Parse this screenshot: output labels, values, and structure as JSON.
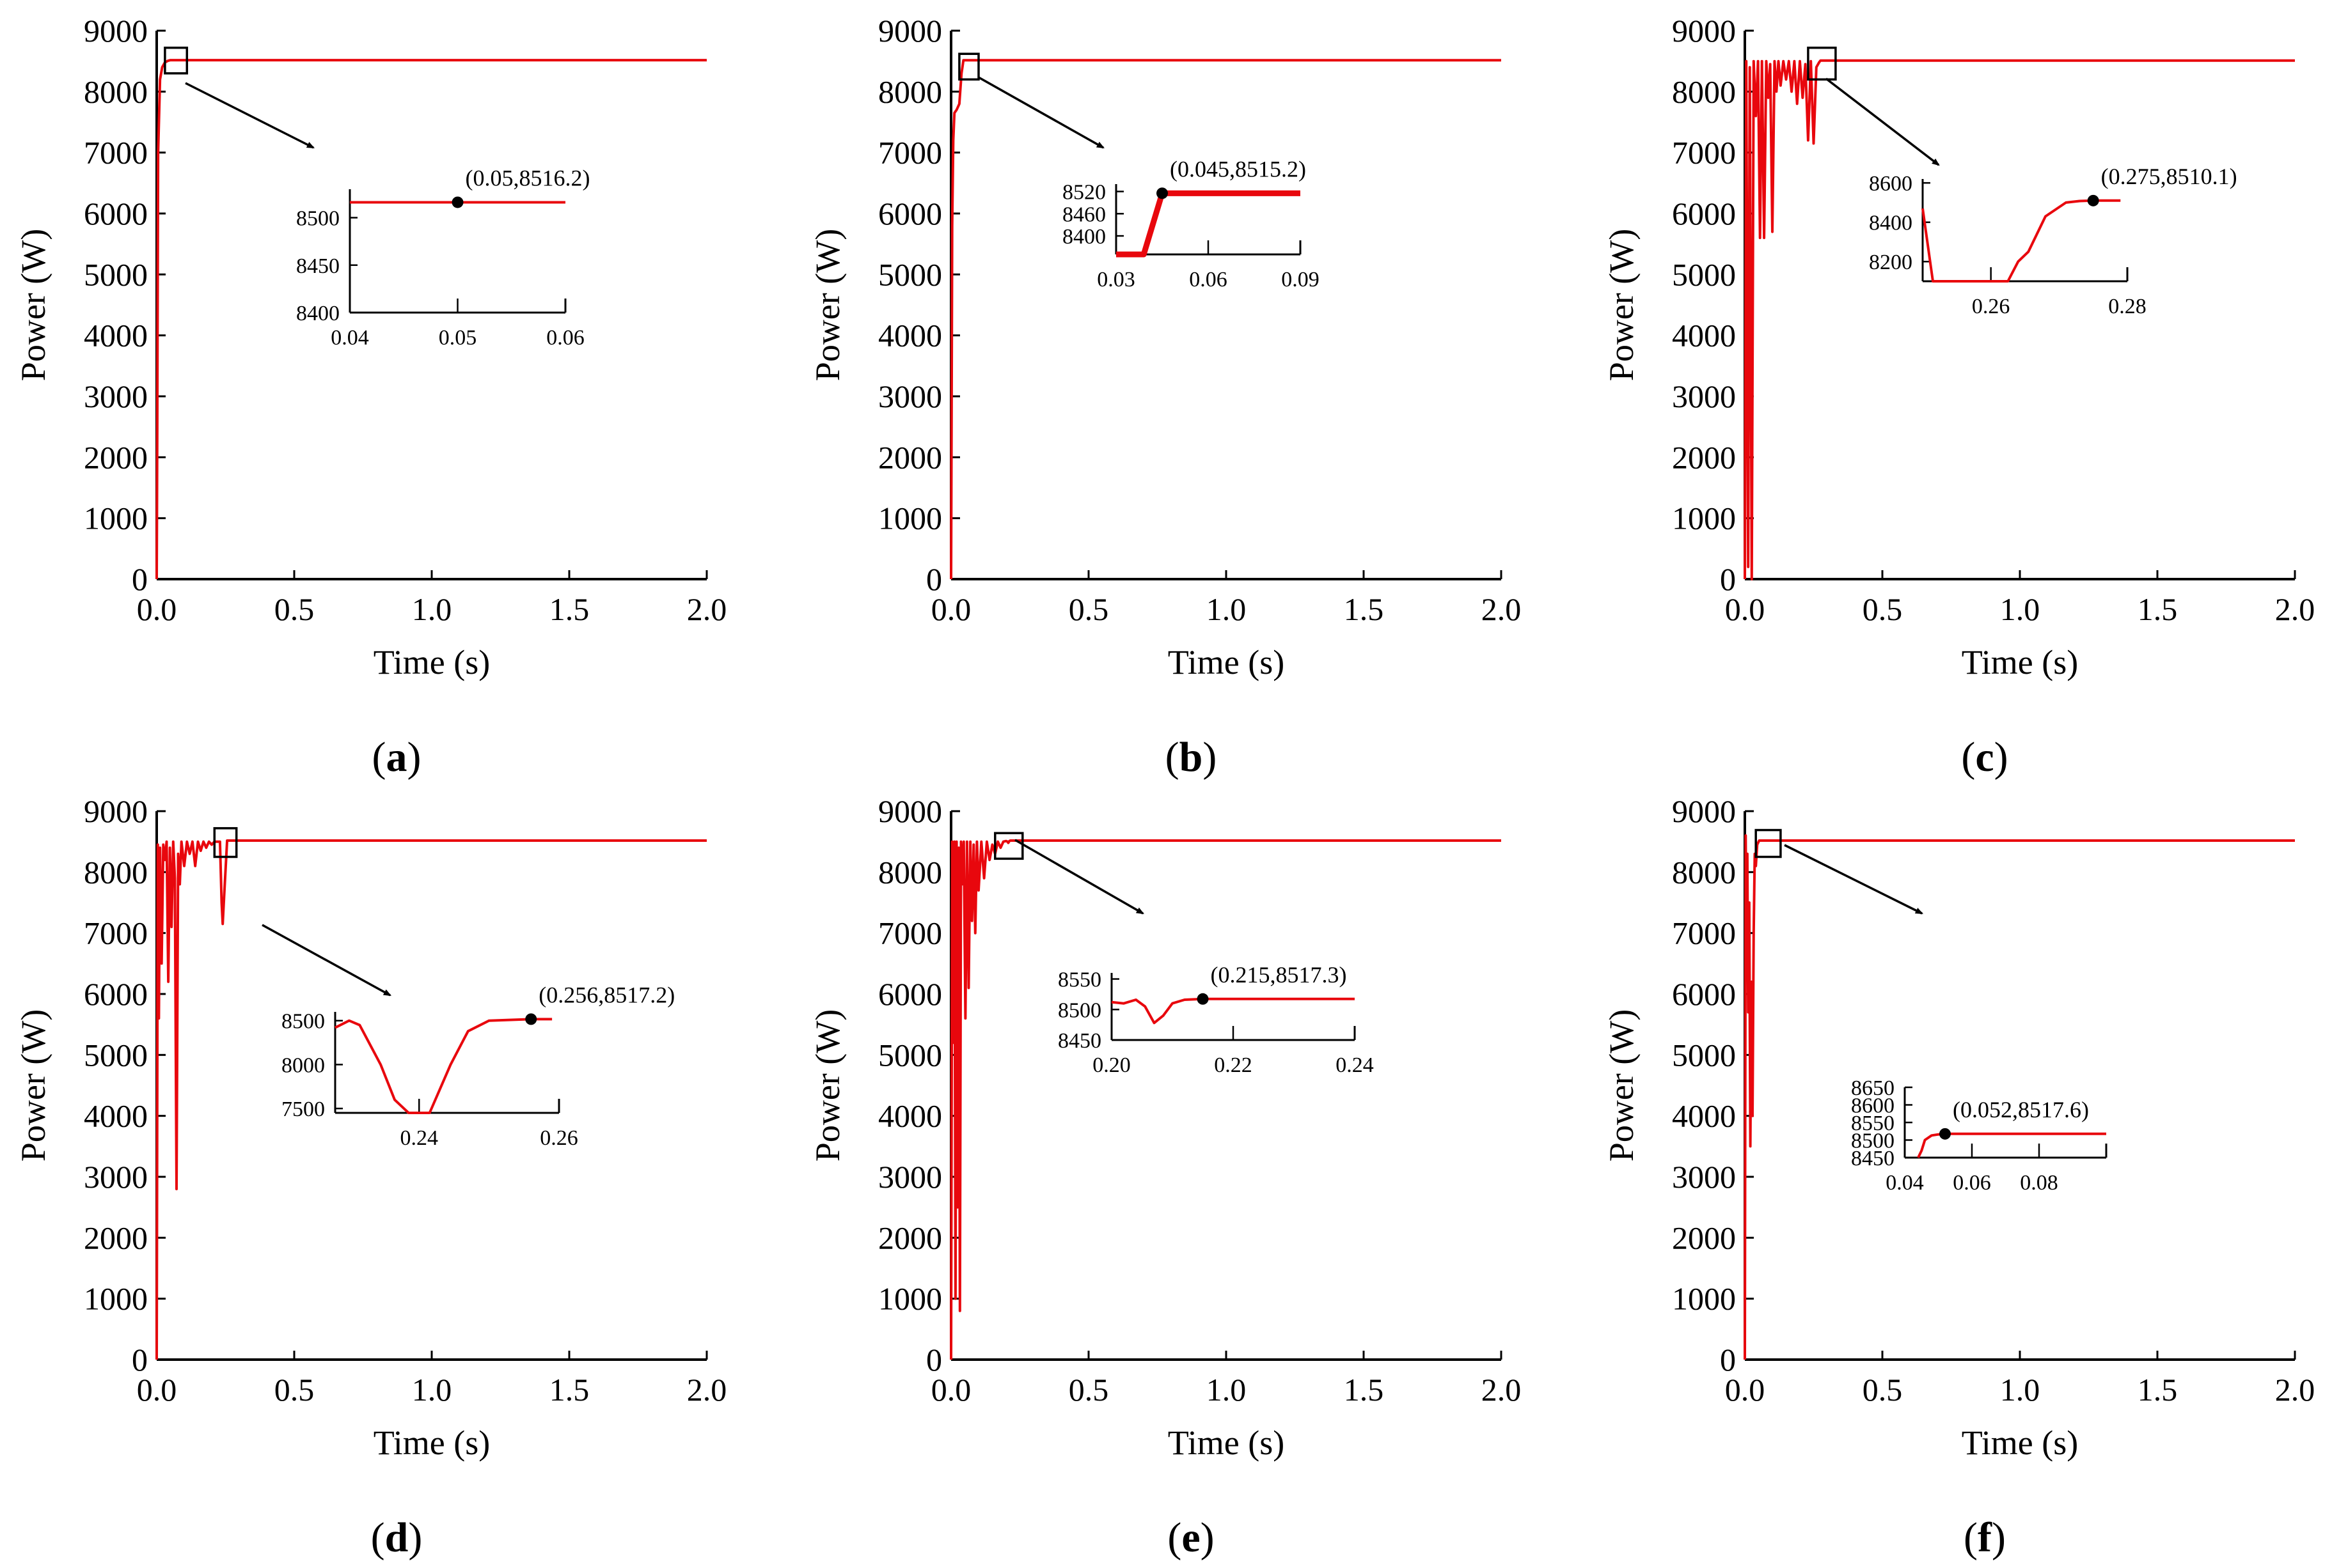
{
  "figure": {
    "line_color": "#e8070d",
    "axis_color": "#000000",
    "marker_color": "#000000"
  },
  "chart_data": [
    {
      "type": "line",
      "panel_label": "a",
      "xlabel": "Time (s)",
      "ylabel": "Power (W)",
      "xlim": [
        0,
        2.0
      ],
      "ylim": [
        0,
        9000
      ],
      "xticks": [
        "0.0",
        "0.5",
        "1.0",
        "1.5",
        "2.0"
      ],
      "yticks": [
        "0",
        "1000",
        "2000",
        "3000",
        "4000",
        "5000",
        "6000",
        "7000",
        "8000",
        "9000"
      ],
      "series": [
        {
          "name": "Power",
          "x": [
            0,
            0.002,
            0.005,
            0.012,
            0.02,
            0.03,
            0.04,
            0.05,
            2.0
          ],
          "y": [
            0,
            2500,
            7000,
            8200,
            8400,
            8480,
            8505,
            8516.2,
            8516.2
          ]
        }
      ],
      "zoom_box": {
        "x": [
          0.03,
          0.11
        ],
        "y": [
          8300,
          8720
        ]
      },
      "inset": {
        "xlim": [
          0.04,
          0.06
        ],
        "ylim": [
          8400,
          8530
        ],
        "xticks": [
          "0.04",
          "0.05",
          "0.06"
        ],
        "yticks": [
          "8400",
          "8450",
          "8500"
        ],
        "series": {
          "x": [
            0.04,
            0.06
          ],
          "y": [
            8516.2,
            8516.2
          ]
        },
        "marker": {
          "x": 0.05,
          "y": 8516.2
        },
        "annotation": "(0.05,8516.2)"
      }
    },
    {
      "type": "line",
      "panel_label": "b",
      "xlabel": "Time (s)",
      "ylabel": "Power (W)",
      "xlim": [
        0,
        2.0
      ],
      "ylim": [
        0,
        9000
      ],
      "xticks": [
        "0.0",
        "0.5",
        "1.0",
        "1.5",
        "2.0"
      ],
      "yticks": [
        "0",
        "1000",
        "2000",
        "3000",
        "4000",
        "5000",
        "6000",
        "7000",
        "8000",
        "9000"
      ],
      "series": [
        {
          "name": "Power",
          "x": [
            0,
            0.004,
            0.008,
            0.012,
            0.02,
            0.03,
            0.038,
            0.045,
            2.0
          ],
          "y": [
            0,
            5800,
            7200,
            7650,
            7700,
            7800,
            8300,
            8515.2,
            8515.2
          ]
        }
      ],
      "zoom_box": {
        "x": [
          0.03,
          0.1
        ],
        "y": [
          8200,
          8620
        ]
      },
      "inset": {
        "xlim": [
          0.03,
          0.09
        ],
        "ylim": [
          8350,
          8540
        ],
        "xticks": [
          "0.03",
          "0.06",
          "0.09"
        ],
        "yticks": [
          "8400",
          "8460",
          "8520"
        ],
        "series": {
          "x": [
            0.03,
            0.039,
            0.045,
            0.09
          ],
          "y": [
            8350,
            8350,
            8515.2,
            8515.2
          ]
        },
        "marker": {
          "x": 0.045,
          "y": 8515.2
        },
        "annotation": "(0.045,8515.2)"
      }
    },
    {
      "type": "line",
      "panel_label": "c",
      "xlabel": "Time (s)",
      "ylabel": "Power (W)",
      "xlim": [
        0,
        2.0
      ],
      "ylim": [
        0,
        9000
      ],
      "xticks": [
        "0.0",
        "0.5",
        "1.0",
        "1.5",
        "2.0"
      ],
      "yticks": [
        "0",
        "1000",
        "2000",
        "3000",
        "4000",
        "5000",
        "6000",
        "7000",
        "8000",
        "9000"
      ],
      "series": [
        {
          "name": "Power",
          "x": [
            0,
            0.005,
            0.012,
            0.018,
            0.025,
            0.032,
            0.04,
            0.048,
            0.055,
            0.062,
            0.07,
            0.078,
            0.085,
            0.092,
            0.1,
            0.108,
            0.115,
            0.122,
            0.13,
            0.14,
            0.15,
            0.16,
            0.17,
            0.18,
            0.19,
            0.2,
            0.21,
            0.22,
            0.23,
            0.24,
            0.25,
            0.26,
            0.27,
            0.275,
            2.0
          ],
          "y": [
            0,
            8500,
            200,
            8400,
            0,
            8500,
            7600,
            8500,
            5600,
            8500,
            5600,
            8500,
            7900,
            8450,
            5700,
            8500,
            8000,
            8500,
            8100,
            8500,
            8200,
            8500,
            8000,
            8500,
            7800,
            8500,
            7900,
            8450,
            7200,
            8500,
            7150,
            8400,
            8480,
            8510.1,
            8510.1
          ]
        }
      ],
      "zoom_box": {
        "x": [
          0.23,
          0.33
        ],
        "y": [
          8200,
          8720
        ]
      },
      "inset": {
        "xlim": [
          0.25,
          0.28
        ],
        "ylim": [
          8100,
          8620
        ],
        "xticks": [
          "0.26",
          "0.28"
        ],
        "yticks": [
          "8200",
          "8400",
          "8600"
        ],
        "series": {
          "x": [
            0.25,
            0.2515,
            0.253,
            0.2545,
            0.256,
            0.2625,
            0.264,
            0.2655,
            0.268,
            0.271,
            0.273,
            0.275,
            0.279
          ],
          "y": [
            8470,
            8100,
            8100,
            8100,
            8100,
            8100,
            8200,
            8250,
            8430,
            8500,
            8508,
            8510.1,
            8510.1
          ]
        },
        "marker": {
          "x": 0.275,
          "y": 8510.1
        },
        "annotation": "(0.275,8510.1)"
      }
    },
    {
      "type": "line",
      "panel_label": "d",
      "xlabel": "Time (s)",
      "ylabel": "Power (W)",
      "xlim": [
        0,
        2.0
      ],
      "ylim": [
        0,
        9000
      ],
      "xticks": [
        "0.0",
        "0.5",
        "1.0",
        "1.5",
        "2.0"
      ],
      "yticks": [
        "0",
        "1000",
        "2000",
        "3000",
        "4000",
        "5000",
        "6000",
        "7000",
        "8000",
        "9000"
      ],
      "series": [
        {
          "name": "Power",
          "x": [
            0,
            0.004,
            0.008,
            0.012,
            0.018,
            0.024,
            0.03,
            0.036,
            0.042,
            0.048,
            0.054,
            0.06,
            0.066,
            0.072,
            0.078,
            0.084,
            0.09,
            0.1,
            0.11,
            0.12,
            0.13,
            0.14,
            0.15,
            0.16,
            0.17,
            0.18,
            0.19,
            0.2,
            0.21,
            0.22,
            0.23,
            0.236,
            0.24,
            0.245,
            0.256,
            2.0
          ],
          "y": [
            0,
            8450,
            5600,
            8400,
            6500,
            8450,
            8200,
            8500,
            6200,
            8400,
            7100,
            8500,
            7900,
            2800,
            8300,
            7800,
            8500,
            8100,
            8500,
            8300,
            8500,
            8100,
            8500,
            8350,
            8500,
            8400,
            8500,
            8450,
            8500,
            8500,
            8500,
            7500,
            7150,
            7600,
            8517.2,
            8517.2
          ]
        }
      ],
      "zoom_box": {
        "x": [
          0.21,
          0.29
        ],
        "y": [
          8250,
          8720
        ]
      },
      "inset": {
        "xlim": [
          0.228,
          0.26
        ],
        "ylim": [
          7450,
          8600
        ],
        "xticks": [
          "0.24",
          "0.26"
        ],
        "yticks": [
          "7500",
          "8000",
          "8500"
        ],
        "series": {
          "x": [
            0.228,
            0.23,
            0.2315,
            0.2345,
            0.2365,
            0.2385,
            0.2415,
            0.2445,
            0.247,
            0.25,
            0.256,
            0.259
          ],
          "y": [
            8420,
            8500,
            8450,
            8000,
            7600,
            7450,
            7450,
            8000,
            8380,
            8500,
            8517.2,
            8517.2
          ]
        },
        "marker": {
          "x": 0.256,
          "y": 8517.2
        },
        "annotation": "(0.256,8517.2)"
      }
    },
    {
      "type": "line",
      "panel_label": "e",
      "xlabel": "Time (s)",
      "ylabel": "Power (W)",
      "xlim": [
        0,
        2.0
      ],
      "ylim": [
        0,
        9000
      ],
      "xticks": [
        "0.0",
        "0.5",
        "1.0",
        "1.5",
        "2.0"
      ],
      "yticks": [
        "0",
        "1000",
        "2000",
        "3000",
        "4000",
        "5000",
        "6000",
        "7000",
        "8000",
        "9000"
      ],
      "series": [
        {
          "name": "Power",
          "x": [
            0,
            0.004,
            0.008,
            0.012,
            0.016,
            0.02,
            0.024,
            0.028,
            0.032,
            0.036,
            0.04,
            0.046,
            0.052,
            0.058,
            0.064,
            0.07,
            0.076,
            0.082,
            0.088,
            0.094,
            0.1,
            0.11,
            0.12,
            0.13,
            0.14,
            0.15,
            0.16,
            0.17,
            0.18,
            0.19,
            0.2,
            0.205,
            0.208,
            0.212,
            0.215,
            2.0
          ],
          "y": [
            0,
            8500,
            5200,
            8500,
            1000,
            8500,
            2500,
            8400,
            800,
            8500,
            7800,
            8500,
            5600,
            8500,
            6100,
            8500,
            7200,
            8450,
            7000,
            8500,
            7700,
            8500,
            7900,
            8500,
            8200,
            8450,
            8300,
            8500,
            8400,
            8500,
            8510,
            8500,
            8480,
            8510,
            8517.3,
            8517.3
          ]
        }
      ],
      "zoom_box": {
        "x": [
          0.16,
          0.26
        ],
        "y": [
          8220,
          8640
        ]
      },
      "inset": {
        "xlim": [
          0.2,
          0.24
        ],
        "ylim": [
          8450,
          8560
        ],
        "xticks": [
          "0.20",
          "0.22",
          "0.24"
        ],
        "yticks": [
          "8450",
          "8500",
          "8550"
        ],
        "series": {
          "x": [
            0.2,
            0.202,
            0.204,
            0.2055,
            0.207,
            0.2085,
            0.21,
            0.212,
            0.215,
            0.24
          ],
          "y": [
            8512,
            8510,
            8516,
            8505,
            8478,
            8490,
            8510,
            8516,
            8517.3,
            8517.3
          ]
        },
        "marker": {
          "x": 0.215,
          "y": 8517.3
        },
        "annotation": "(0.215,8517.3)"
      }
    },
    {
      "type": "line",
      "panel_label": "f",
      "xlabel": "Time (s)",
      "ylabel": "Power (W)",
      "xlim": [
        0,
        2.0
      ],
      "ylim": [
        0,
        9000
      ],
      "xticks": [
        "0.0",
        "0.5",
        "1.0",
        "1.5",
        "2.0"
      ],
      "yticks": [
        "0",
        "1000",
        "2000",
        "3000",
        "4000",
        "5000",
        "6000",
        "7000",
        "8000",
        "9000"
      ],
      "series": [
        {
          "name": "Power",
          "x": [
            0,
            0.003,
            0.006,
            0.009,
            0.012,
            0.016,
            0.02,
            0.024,
            0.028,
            0.032,
            0.036,
            0.04,
            0.045,
            0.052,
            2.0
          ],
          "y": [
            0,
            8600,
            6600,
            8300,
            5700,
            7500,
            3500,
            6200,
            4000,
            7000,
            8300,
            8100,
            8450,
            8517.6,
            8517.6
          ]
        }
      ],
      "zoom_box": {
        "x": [
          0.04,
          0.13
        ],
        "y": [
          8250,
          8690
        ]
      },
      "inset": {
        "xlim": [
          0.04,
          0.1
        ],
        "ylim": [
          8450,
          8650
        ],
        "xticks": [
          "0.04",
          "0.06",
          "0.08"
        ],
        "yticks": [
          "8450",
          "8500",
          "8550",
          "8600",
          "8650"
        ],
        "series": {
          "x": [
            0.044,
            0.045,
            0.046,
            0.048,
            0.05,
            0.052,
            0.1
          ],
          "y": [
            8450,
            8470,
            8500,
            8513,
            8516,
            8517.6,
            8517.6
          ]
        },
        "marker": {
          "x": 0.052,
          "y": 8517.6
        },
        "annotation": "(0.052,8517.6)"
      }
    }
  ]
}
